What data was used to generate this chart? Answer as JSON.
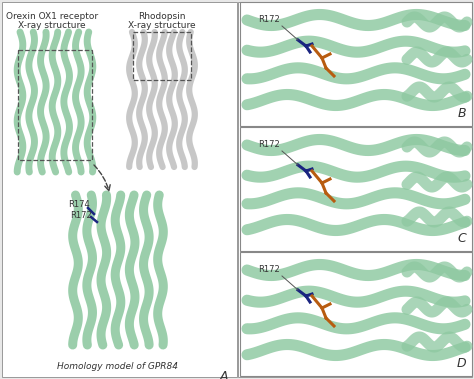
{
  "bg": "#e8e8e8",
  "white": "#ffffff",
  "green": "#8dc8a0",
  "gray": "#c0c0c0",
  "navy": "#1a2580",
  "orange": "#b85c10",
  "dark": "#333333",
  "lbl_fs": 6.5,
  "ann_fs": 6.0,
  "fig_w": 4.74,
  "fig_h": 3.79,
  "title_ox1_1": "Orexin OX1 receptor",
  "title_ox1_2": "X-ray structure",
  "title_rhod_1": "Rhodopsin",
  "title_rhod_2": "X-ray structure",
  "bottom_lbl": "Homology model of GPR84",
  "panel_A": "A",
  "panel_B": "B",
  "panel_C": "C",
  "panel_D": "D",
  "r172": "R172",
  "r174": "R174"
}
